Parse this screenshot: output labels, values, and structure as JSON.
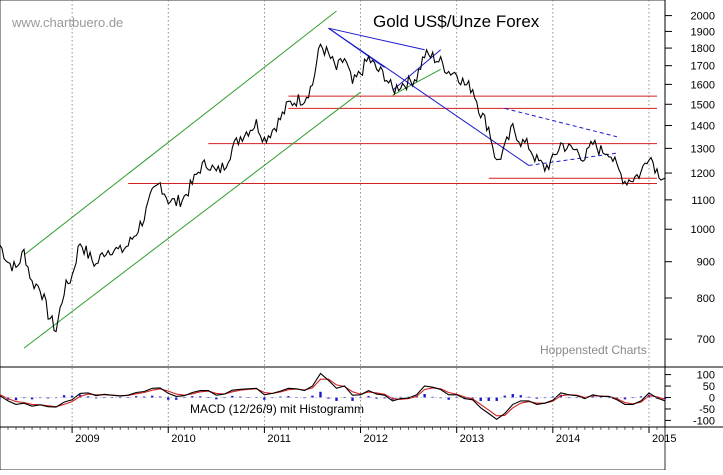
{
  "watermark": "www.chartbuero.de",
  "source": "Hoppenstedt Charts",
  "chart_data": [
    {
      "type": "line",
      "title": "Gold US$/Unze Forex",
      "y_scale": "log",
      "ylim": [
        650,
        2050
      ],
      "y_ticks": [
        700,
        800,
        900,
        1000,
        1100,
        1200,
        1300,
        1400,
        1500,
        1600,
        1700,
        1800,
        1900,
        2000
      ],
      "x_range": [
        "2008-04",
        "2015-03"
      ],
      "x_tick_labels": [
        "2009",
        "2010",
        "2011",
        "2012",
        "2013",
        "2014",
        "2015"
      ],
      "grid": "vertical dotted",
      "series": [
        {
          "x": [
            "2008-04",
            "2008-05",
            "2008-06",
            "2008-07",
            "2008-08",
            "2008-09",
            "2008-10",
            "2008-11",
            "2008-12",
            "2009-01",
            "2009-02",
            "2009-03",
            "2009-04",
            "2009-05",
            "2009-06",
            "2009-07",
            "2009-08",
            "2009-09",
            "2009-10",
            "2009-11",
            "2009-12",
            "2010-01",
            "2010-02",
            "2010-03",
            "2010-04",
            "2010-05",
            "2010-06",
            "2010-07",
            "2010-08",
            "2010-09",
            "2010-10",
            "2010-11",
            "2010-12",
            "2011-01",
            "2011-02",
            "2011-03",
            "2011-04",
            "2011-05",
            "2011-06",
            "2011-07",
            "2011-08",
            "2011-09",
            "2011-10",
            "2011-11",
            "2011-12",
            "2012-01",
            "2012-02",
            "2012-03",
            "2012-04",
            "2012-05",
            "2012-06",
            "2012-07",
            "2012-08",
            "2012-09",
            "2012-10",
            "2012-11",
            "2012-12",
            "2013-01",
            "2013-02",
            "2013-03",
            "2013-04",
            "2013-05",
            "2013-06",
            "2013-07",
            "2013-08",
            "2013-09",
            "2013-10",
            "2013-11",
            "2013-12",
            "2014-01",
            "2014-02",
            "2014-03",
            "2014-04",
            "2014-05",
            "2014-06",
            "2014-07",
            "2014-08",
            "2014-09",
            "2014-10",
            "2014-11",
            "2014-12",
            "2015-01",
            "2015-02",
            "2015-03"
          ],
          "values": [
            950,
            900,
            880,
            930,
            840,
            830,
            760,
            720,
            820,
            860,
            960,
            920,
            890,
            930,
            940,
            930,
            950,
            990,
            1040,
            1120,
            1160,
            1100,
            1090,
            1110,
            1160,
            1220,
            1240,
            1200,
            1230,
            1300,
            1350,
            1380,
            1410,
            1340,
            1380,
            1430,
            1500,
            1520,
            1530,
            1600,
            1820,
            1760,
            1680,
            1740,
            1600,
            1660,
            1740,
            1680,
            1650,
            1570,
            1600,
            1610,
            1640,
            1760,
            1750,
            1720,
            1670,
            1660,
            1600,
            1580,
            1460,
            1390,
            1240,
            1300,
            1390,
            1330,
            1310,
            1250,
            1220,
            1250,
            1320,
            1300,
            1290,
            1260,
            1320,
            1290,
            1290,
            1220,
            1170,
            1180,
            1200,
            1280,
            1210,
            1180
          ]
        }
      ],
      "annotations": [
        {
          "kind": "support_line",
          "value": 1160
        },
        {
          "kind": "support_line",
          "value": 1180
        },
        {
          "kind": "resistance_line",
          "value": 1320
        },
        {
          "kind": "resistance_line",
          "value": 1480
        },
        {
          "kind": "resistance_line",
          "value": 1540
        },
        {
          "kind": "trend_channel",
          "color": "#2e9e2e",
          "lower": [
            [
              "2008-07",
              680
            ],
            [
              "2012-01",
              1560
            ]
          ],
          "upper": [
            [
              "2008-07",
              920
            ],
            [
              "2011-10",
              2030
            ]
          ]
        },
        {
          "kind": "trend_line",
          "color": "#2e9e2e",
          "points": [
            [
              "2012-05",
              1545
            ],
            [
              "2012-11",
              1680
            ]
          ]
        },
        {
          "kind": "trend_line",
          "color": "#1a1acc",
          "points": [
            [
              "2011-09",
              1920
            ],
            [
              "2013-10",
              1230
            ]
          ]
        },
        {
          "kind": "trend_line",
          "color": "#1a1acc",
          "points": [
            [
              "2011-09",
              1920
            ],
            [
              "2012-09",
              1790
            ]
          ]
        },
        {
          "kind": "trend_line",
          "color": "#1a1acc",
          "points": [
            [
              "2011-09",
              1920
            ],
            [
              "2012-04",
              1690
            ]
          ]
        },
        {
          "kind": "trend_line",
          "color": "#1a1acc",
          "points": [
            [
              "2012-05",
              1570
            ],
            [
              "2012-11",
              1790
            ]
          ]
        },
        {
          "kind": "trend_line",
          "color": "#1a1acc",
          "dashed": true,
          "points": [
            [
              "2013-07",
              1480
            ],
            [
              "2014-09",
              1350
            ]
          ]
        },
        {
          "kind": "trend_line",
          "color": "#1a1acc",
          "dashed": true,
          "points": [
            [
              "2013-10",
              1230
            ],
            [
              "2014-09",
              1280
            ]
          ]
        }
      ]
    },
    {
      "type": "line",
      "title": "MACD (12/26/9) mit Histogramm",
      "ylim": [
        -120,
        120
      ],
      "y_ticks": [
        100,
        50,
        0,
        -50,
        -100
      ],
      "series": [
        {
          "name": "MACD",
          "color": "#000000",
          "values": [
            8,
            -15,
            -30,
            -25,
            -38,
            -32,
            -40,
            -42,
            -20,
            -10,
            18,
            20,
            8,
            14,
            10,
            6,
            10,
            22,
            26,
            40,
            42,
            18,
            5,
            8,
            22,
            30,
            30,
            10,
            15,
            32,
            36,
            38,
            40,
            12,
            18,
            28,
            40,
            38,
            30,
            50,
            105,
            75,
            40,
            50,
            10,
            12,
            30,
            15,
            10,
            -15,
            -5,
            -2,
            12,
            50,
            45,
            35,
            12,
            12,
            -5,
            -10,
            -45,
            -70,
            -95,
            -70,
            -30,
            -15,
            -15,
            -30,
            -25,
            -12,
            20,
            12,
            8,
            -5,
            12,
            5,
            5,
            -10,
            -30,
            -30,
            -15,
            20,
            -2,
            -15
          ]
        },
        {
          "name": "Signal",
          "color": "#d42020",
          "values": [
            12,
            -5,
            -18,
            -22,
            -30,
            -32,
            -36,
            -40,
            -30,
            -18,
            5,
            15,
            12,
            12,
            10,
            8,
            9,
            16,
            22,
            32,
            38,
            28,
            15,
            10,
            16,
            25,
            28,
            18,
            15,
            25,
            32,
            36,
            38,
            22,
            18,
            24,
            34,
            37,
            33,
            42,
            80,
            80,
            55,
            48,
            25,
            15,
            24,
            20,
            14,
            -5,
            -8,
            -5,
            5,
            35,
            42,
            38,
            22,
            14,
            2,
            -6,
            -30,
            -55,
            -80,
            -78,
            -45,
            -25,
            -18,
            -25,
            -25,
            -16,
            8,
            12,
            10,
            0,
            8,
            6,
            5,
            -5,
            -22,
            -28,
            -20,
            8,
            3,
            -8
          ]
        },
        {
          "name": "Histogramm",
          "color": "#1a1acc",
          "values": [
            -4,
            -10,
            -12,
            -3,
            -8,
            0,
            -4,
            -2,
            10,
            8,
            13,
            5,
            -4,
            2,
            0,
            -2,
            1,
            6,
            4,
            8,
            4,
            -10,
            -10,
            -2,
            6,
            5,
            2,
            -8,
            0,
            7,
            4,
            2,
            2,
            -10,
            0,
            4,
            6,
            1,
            -3,
            8,
            25,
            -5,
            -15,
            2,
            -15,
            -3,
            6,
            -5,
            -4,
            -10,
            3,
            3,
            7,
            15,
            3,
            -3,
            -10,
            -2,
            -7,
            -4,
            -15,
            -15,
            -15,
            8,
            15,
            10,
            3,
            -5,
            0,
            4,
            12,
            0,
            -2,
            -5,
            4,
            -1,
            0,
            -5,
            -8,
            -2,
            5,
            12,
            -5,
            -7
          ]
        }
      ]
    }
  ]
}
